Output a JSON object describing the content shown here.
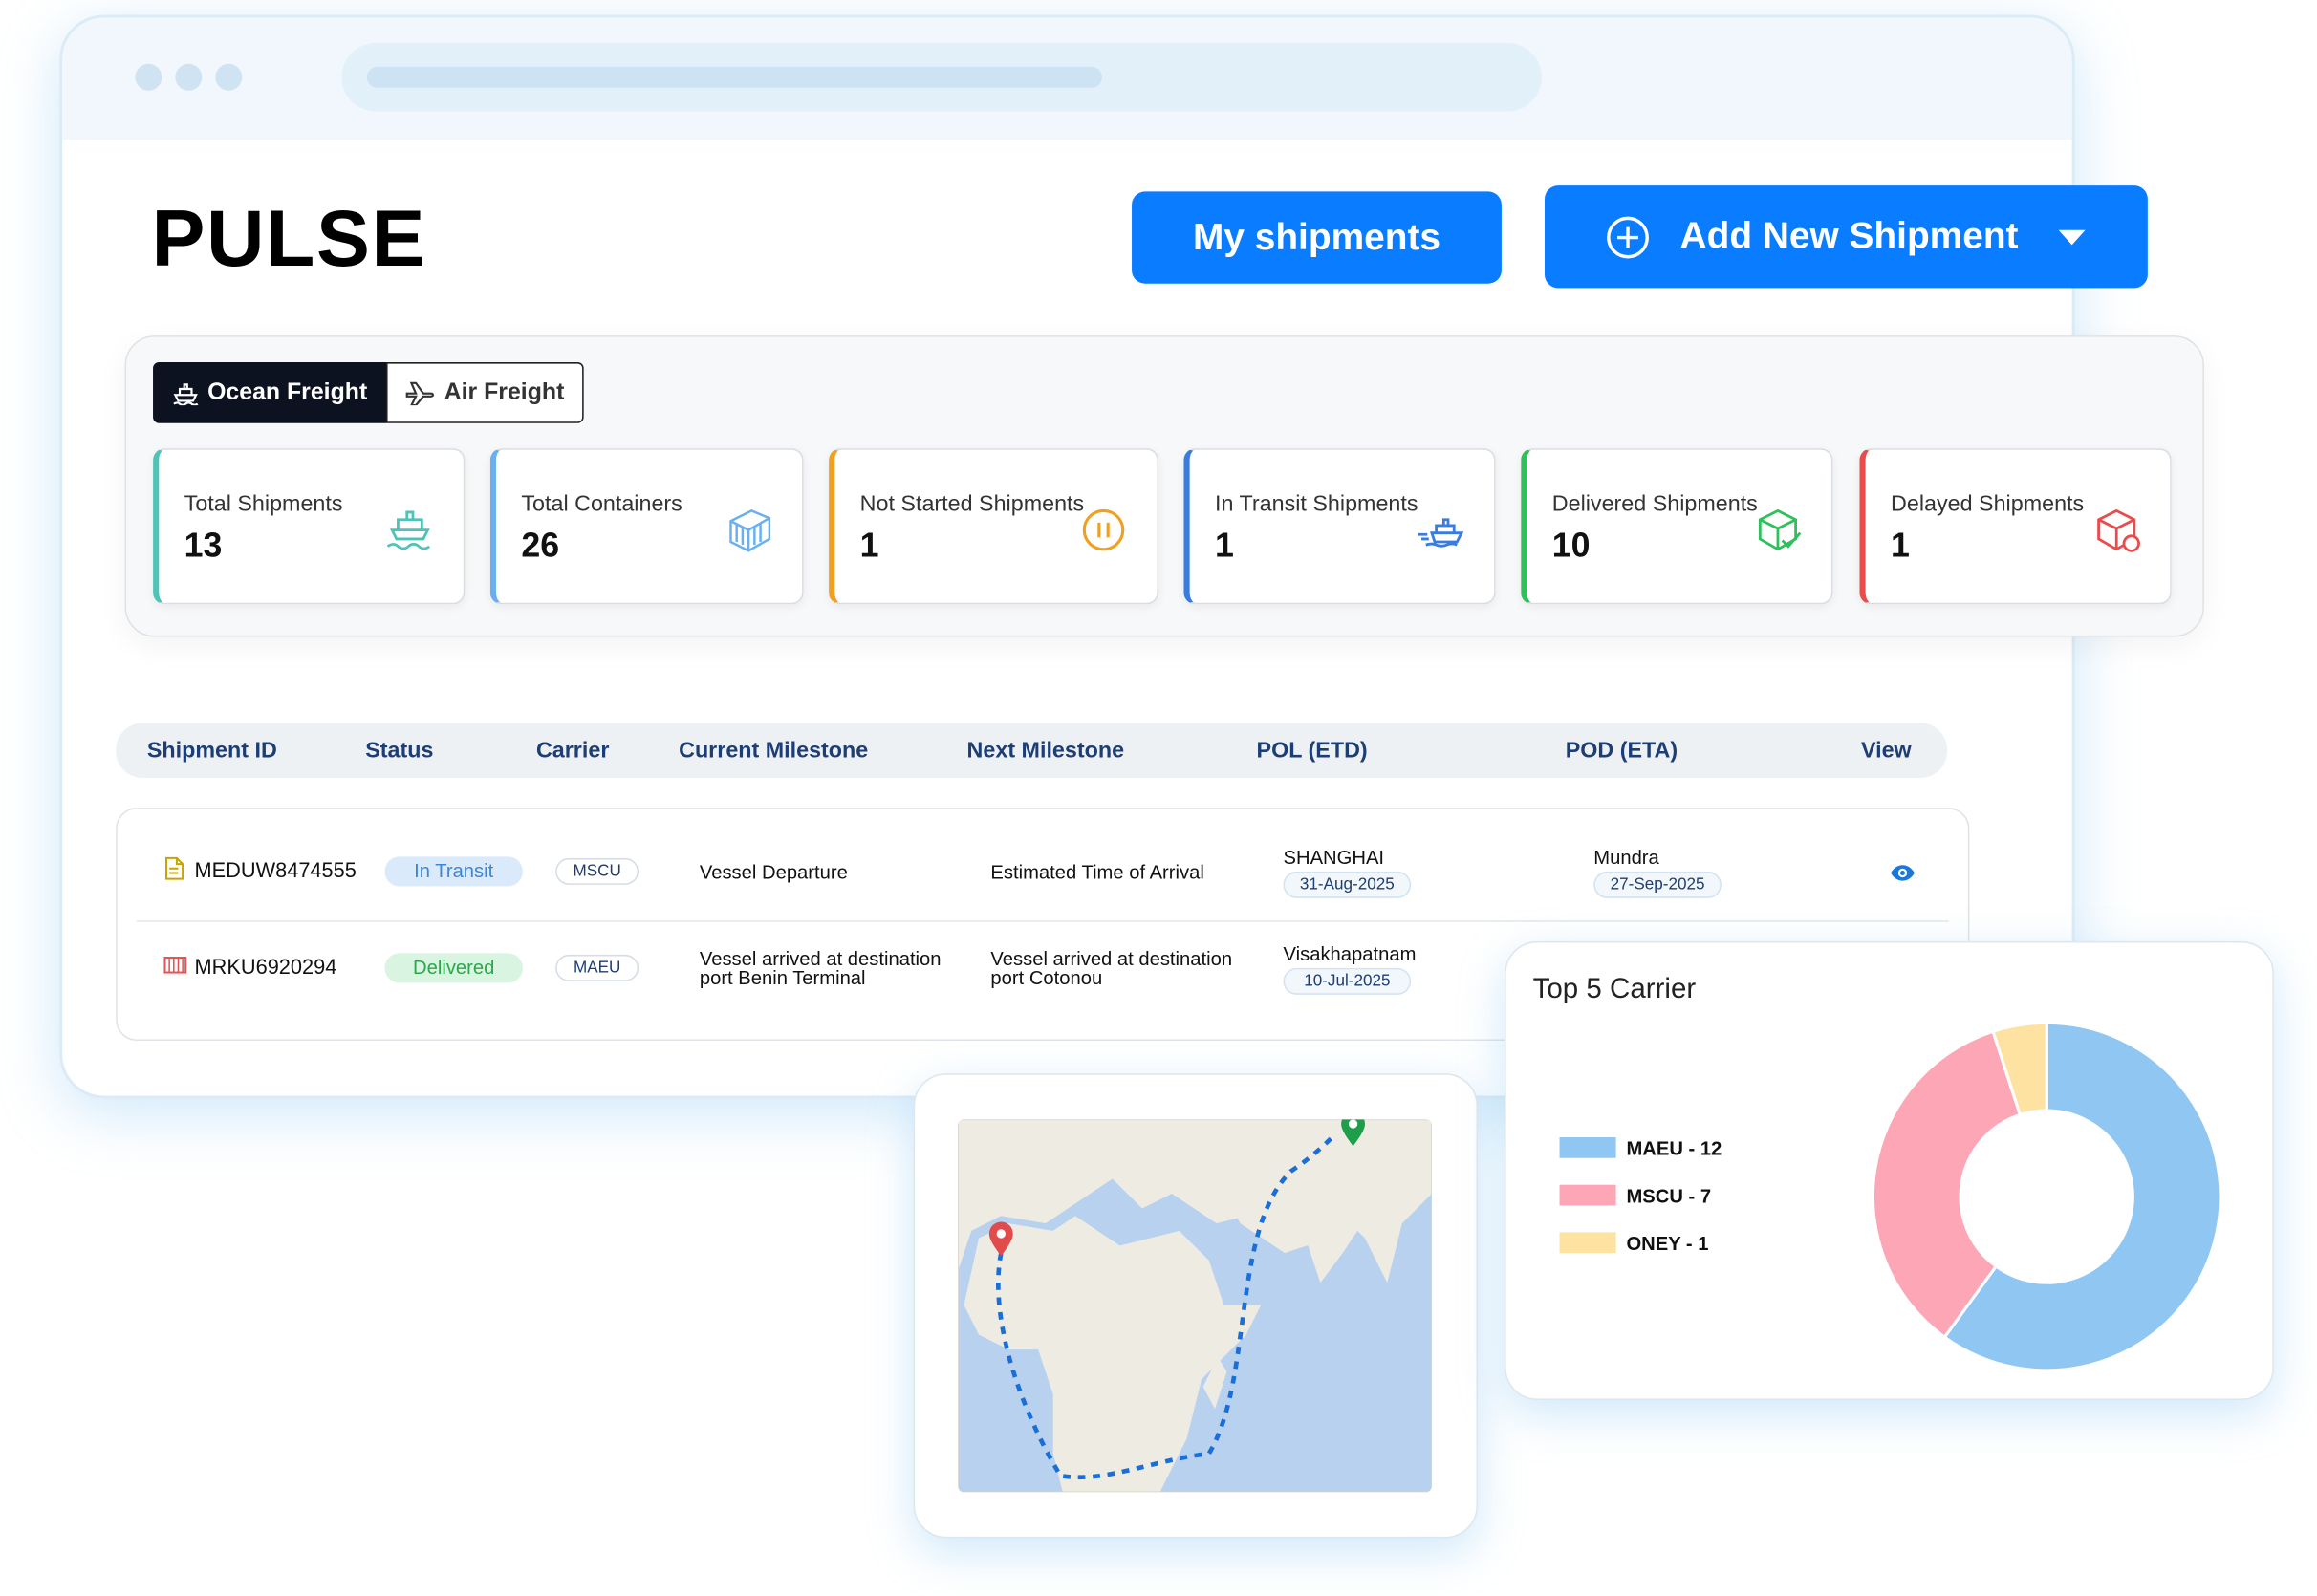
{
  "header": {
    "logo": "PULSE",
    "my_shipments": "My shipments",
    "add_shipment": "Add New Shipment"
  },
  "tabs": [
    "Ocean Freight",
    "Air Freight"
  ],
  "stats": [
    {
      "label": "Total Shipments",
      "value": 13
    },
    {
      "label": "Total Containers",
      "value": 26
    },
    {
      "label": "Not Started Shipments",
      "value": 1
    },
    {
      "label": "In Transit Shipments",
      "value": 1
    },
    {
      "label": "Delivered Shipments",
      "value": 10
    },
    {
      "label": "Delayed Shipments",
      "value": 1
    }
  ],
  "table": {
    "columns": [
      "Shipment ID",
      "Status",
      "Carrier",
      "Current Milestone",
      "Next Milestone",
      "POL (ETD)",
      "POD (ETA)",
      "View"
    ],
    "rows": [
      {
        "id": "MEDUW8474555",
        "status": "In Transit",
        "carrier": "MSCU",
        "current": "Vessel Departure",
        "next": "Estimated Time of Arrival",
        "pol": "SHANGHAI",
        "etd": "31-Aug-2025",
        "pod": "Mundra",
        "eta": "27-Sep-2025"
      },
      {
        "id": "MRKU6920294",
        "status": "Delivered",
        "carrier": "MAEU",
        "current": "Vessel arrived at destination port Benin Terminal",
        "next": "Vessel arrived at destination port Cotonou",
        "pol": "Visakhapatnam",
        "etd": "10-Jul-2025"
      }
    ]
  },
  "carrier_chart": {
    "type": "pie",
    "title": "Top 5 Carrier",
    "categories": [
      "MAEU - 12",
      "MSCU - 7",
      "ONEY - 1"
    ],
    "values": [
      12,
      7,
      1
    ],
    "colors": [
      "#90c6f2",
      "#fda6b6",
      "#fde2a2"
    ]
  }
}
